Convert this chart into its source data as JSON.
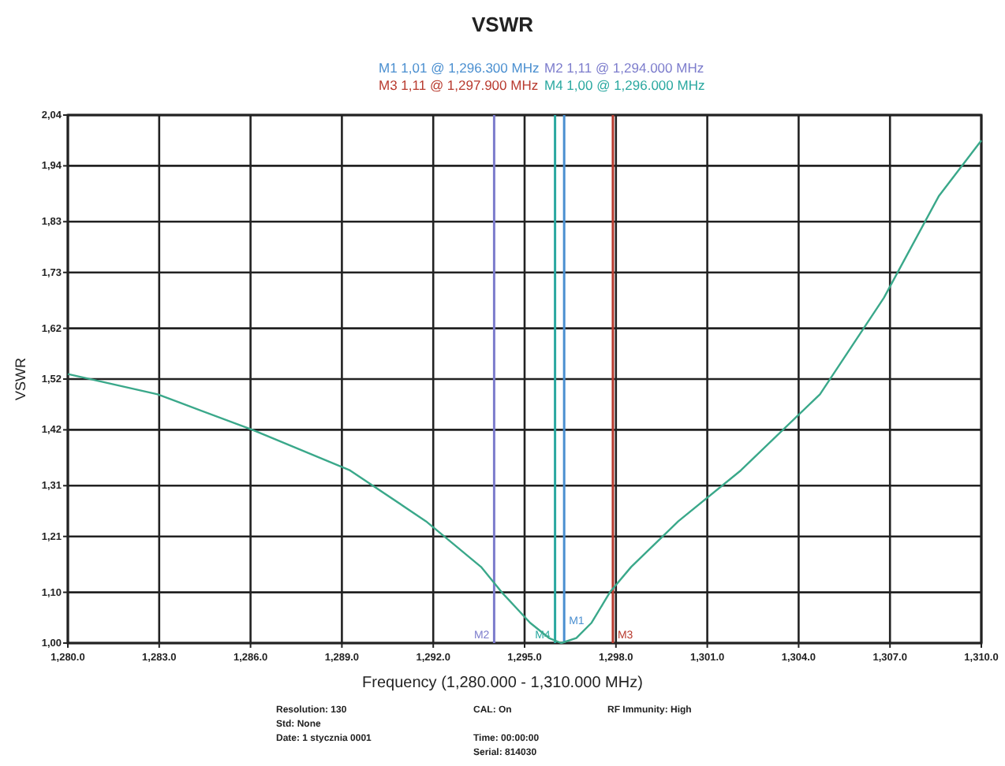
{
  "chart_data": {
    "type": "line",
    "title": "VSWR",
    "xlabel": "Frequency (1,280.000 - 1,310.000 MHz)",
    "ylabel": "VSWR",
    "x": [
      1280,
      1282.95,
      1286.06,
      1289.27,
      1291.76,
      1293.57,
      1294.25,
      1295.18,
      1295.8,
      1296.2,
      1296.7,
      1297.2,
      1297.8,
      1298.5,
      1300.05,
      1302.1,
      1304.7,
      1306.8,
      1308.6,
      1310
    ],
    "series": [
      {
        "color": "#3aa88a",
        "values": [
          1.53,
          1.49,
          1.42,
          1.34,
          1.24,
          1.15,
          1.1,
          1.04,
          1.01,
          1.0,
          1.01,
          1.04,
          1.1,
          1.15,
          1.24,
          1.34,
          1.49,
          1.68,
          1.88,
          1.99
        ]
      }
    ],
    "xlim": [
      1280,
      1310
    ],
    "xticks": [
      {
        "value": 1280,
        "label": "1,280.0"
      },
      {
        "value": 1283,
        "label": "1,283.0"
      },
      {
        "value": 1286,
        "label": "1,286.0"
      },
      {
        "value": 1289,
        "label": "1,289.0"
      },
      {
        "value": 1292,
        "label": "1,292.0"
      },
      {
        "value": 1295,
        "label": "1,295.0"
      },
      {
        "value": 1298,
        "label": "1,298.0"
      },
      {
        "value": 1301,
        "label": "1,301.0"
      },
      {
        "value": 1304,
        "label": "1,304.0"
      },
      {
        "value": 1307,
        "label": "1,307.0"
      },
      {
        "value": 1310,
        "label": "1,310.0"
      }
    ],
    "ylim": [
      1.0,
      2.04
    ],
    "yticks": [
      {
        "value": 1.0,
        "label": "1,00"
      },
      {
        "value": 1.1,
        "label": "1,10"
      },
      {
        "value": 1.21,
        "label": "1,21"
      },
      {
        "value": 1.31,
        "label": "1,31"
      },
      {
        "value": 1.42,
        "label": "1,42"
      },
      {
        "value": 1.52,
        "label": "1,52"
      },
      {
        "value": 1.62,
        "label": "1,62"
      },
      {
        "value": 1.73,
        "label": "1,73"
      },
      {
        "value": 1.83,
        "label": "1,83"
      },
      {
        "value": 1.94,
        "label": "1,94"
      },
      {
        "value": 2.04,
        "label": "2,04"
      }
    ],
    "grid": true,
    "ref_lines": [
      {
        "axis": "x",
        "value": 1296.3,
        "label": "M1",
        "color": "#4a8fd0"
      },
      {
        "axis": "x",
        "value": 1294,
        "label": "M2",
        "color": "#7c7ccc"
      },
      {
        "axis": "x",
        "value": 1297.9,
        "label": "M3",
        "color": "#b83a2e"
      },
      {
        "axis": "x",
        "value": 1296,
        "label": "M4",
        "color": "#2aa8a0"
      }
    ],
    "annotations": [
      "M1 1,01 @ 1,296.300 MHz",
      "M2 1,11 @ 1,294.000 MHz",
      "M3 1,11 @ 1,297.900 MHz",
      "M4 1,00 @ 1,296.000 MHz",
      "Resolution: 130",
      "Std: None",
      "Date: 1 stycznia 0001",
      "CAL: On",
      "Time: 00:00:00",
      "Serial: 814030",
      "RF Immunity: High"
    ]
  }
}
